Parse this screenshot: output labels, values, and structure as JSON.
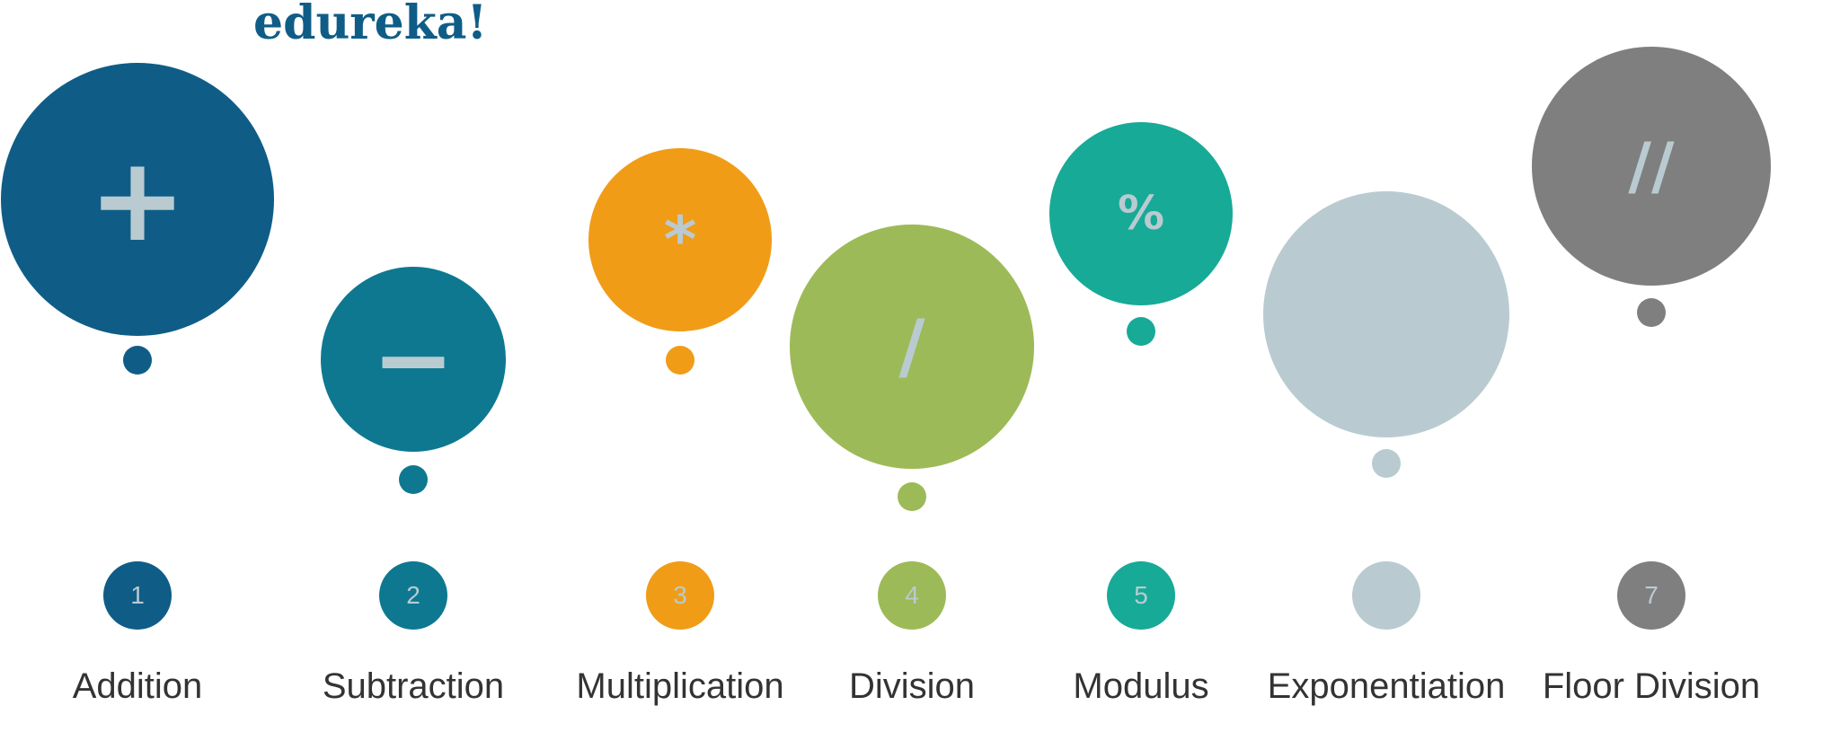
{
  "logo": {
    "text": "edureka!",
    "color": "#0f5d87"
  },
  "symbol_color": "#b9cbd1",
  "operators": [
    {
      "label": "Addition",
      "number": "1",
      "symbol": "+",
      "color": "#0f5d87"
    },
    {
      "label": "Subtraction",
      "number": "2",
      "symbol": "−",
      "color": "#0e7891"
    },
    {
      "label": "Multiplication",
      "number": "3",
      "symbol": "*",
      "color": "#f09c17"
    },
    {
      "label": "Division",
      "number": "4",
      "symbol": "/",
      "color": "#9dba58"
    },
    {
      "label": "Modulus",
      "number": "5",
      "symbol": "%",
      "color": "#17aa97"
    },
    {
      "label": "Exponentiation",
      "number": "",
      "symbol": "",
      "color": "#b9cbd1"
    },
    {
      "label": "Floor Division",
      "number": "7",
      "symbol": "//",
      "color": "#7f7f7f"
    }
  ]
}
